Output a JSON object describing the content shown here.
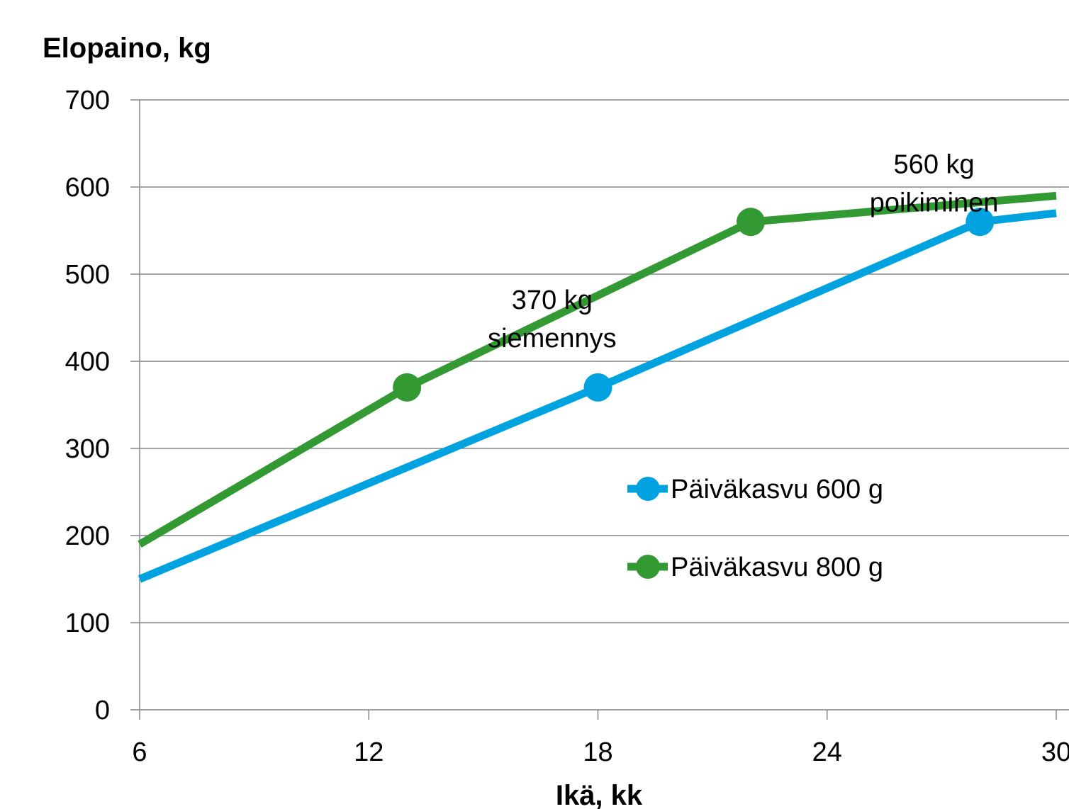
{
  "chart_data": {
    "type": "line",
    "ylabel": "Elopaino, kg",
    "xlabel": "Ikä, kk",
    "xlim": [
      6,
      30
    ],
    "ylim": [
      0,
      700
    ],
    "x_ticks": [
      6,
      12,
      18,
      24,
      30
    ],
    "y_ticks": [
      0,
      100,
      200,
      300,
      400,
      500,
      600,
      700
    ],
    "grid": "horizontal",
    "legend_position": "center-right",
    "series": [
      {
        "name": "Päiväkasvu 600 g",
        "color": "#00A3E0",
        "points": [
          [
            6,
            150
          ],
          [
            18,
            370
          ],
          [
            28,
            560
          ],
          [
            30,
            570
          ]
        ],
        "markers": [
          [
            18,
            370
          ],
          [
            28,
            560
          ]
        ]
      },
      {
        "name": "Päiväkasvu 800 g",
        "color": "#339933",
        "points": [
          [
            6,
            190
          ],
          [
            13,
            370
          ],
          [
            22,
            560
          ],
          [
            30,
            590
          ]
        ],
        "markers": [
          [
            13,
            370
          ],
          [
            22,
            560
          ]
        ]
      }
    ],
    "annotations": [
      {
        "lines": [
          "370 kg",
          "siemennys"
        ],
        "x": 16.8,
        "y": 460
      },
      {
        "lines": [
          "560 kg",
          "poikiminen"
        ],
        "x": 26.8,
        "y": 616
      }
    ]
  }
}
